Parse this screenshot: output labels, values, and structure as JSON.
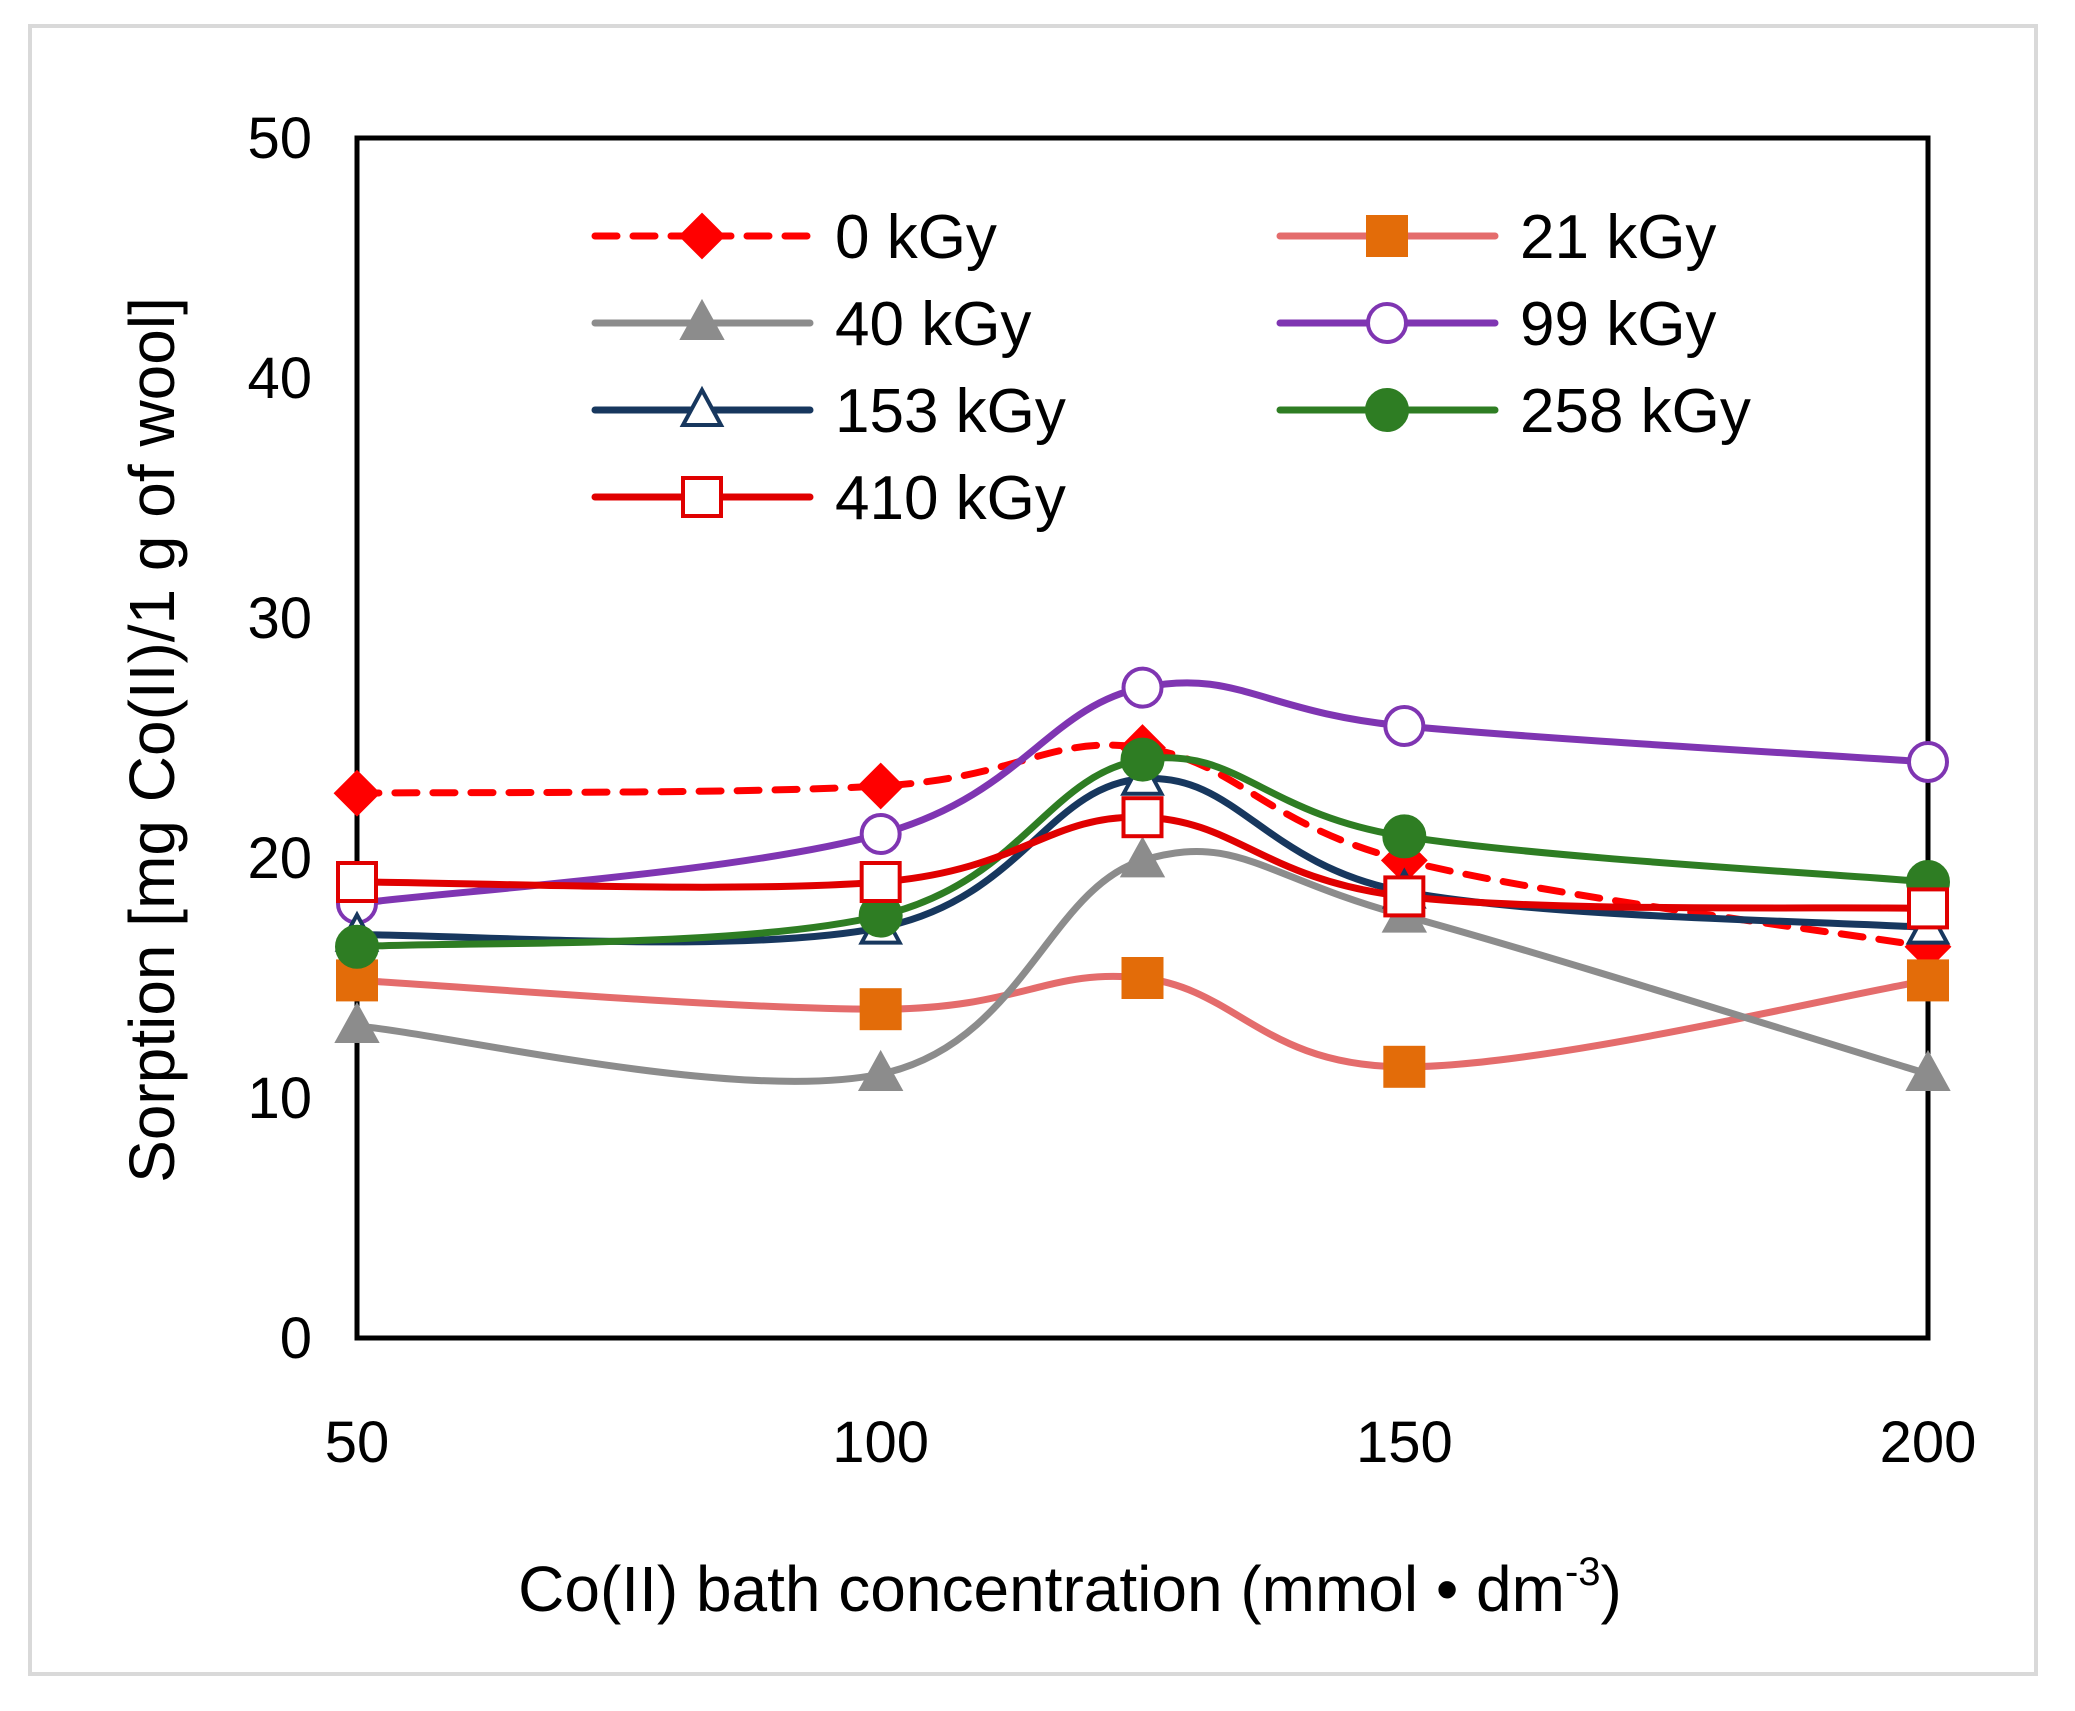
{
  "chart_data": {
    "type": "line",
    "title": "",
    "xlabel": "Co(II) bath concentration (mmol • dm",
    "xlabel_superscript": "-3",
    "xlabel_suffix": ")",
    "ylabel": "Sorption [mg Co(II)/1 g of wool]",
    "xlim": [
      50,
      200
    ],
    "ylim": [
      0,
      50
    ],
    "x": [
      50,
      100,
      125,
      150,
      200
    ],
    "xticks": [
      "50",
      "100",
      "150",
      "200"
    ],
    "xtick_values": [
      50,
      100,
      150,
      200
    ],
    "yticks": [
      "0",
      "10",
      "20",
      "30",
      "40",
      "50"
    ],
    "ytick_values": [
      0,
      10,
      20,
      30,
      40,
      50
    ],
    "grid": false,
    "legend_position": "top",
    "series": [
      {
        "name": "0 kGy",
        "values": [
          22.7,
          23.0,
          24.6,
          19.9,
          16.3
        ],
        "color": "#ff0000",
        "marker": "diamond-filled",
        "dash": true
      },
      {
        "name": "21 kGy",
        "values": [
          14.9,
          13.7,
          15.0,
          11.3,
          14.9
        ],
        "color": "#e46c6c",
        "marker_color": "#e36c09",
        "marker": "square-filled",
        "dash": false
      },
      {
        "name": "40 kGy",
        "values": [
          13.0,
          11.0,
          19.9,
          17.6,
          11.0
        ],
        "color": "#8c8c8c",
        "marker": "triangle-filled",
        "dash": false
      },
      {
        "name": "99 kGy",
        "values": [
          18.1,
          21.0,
          27.1,
          25.5,
          24.0
        ],
        "color": "#7f35b2",
        "marker": "circle-open",
        "dash": false
      },
      {
        "name": "153 kGy",
        "values": [
          16.8,
          17.1,
          23.3,
          18.6,
          17.1
        ],
        "color": "#17375e",
        "marker": "triangle-open",
        "dash": false
      },
      {
        "name": "258 kGy",
        "values": [
          16.3,
          17.6,
          24.1,
          20.9,
          19.0
        ],
        "color": "#2e7d23",
        "marker": "circle-filled",
        "dash": false
      },
      {
        "name": "410 kGy",
        "values": [
          19.0,
          19.0,
          21.7,
          18.4,
          17.9
        ],
        "color": "#e00000",
        "marker": "square-open",
        "dash": false
      }
    ]
  }
}
